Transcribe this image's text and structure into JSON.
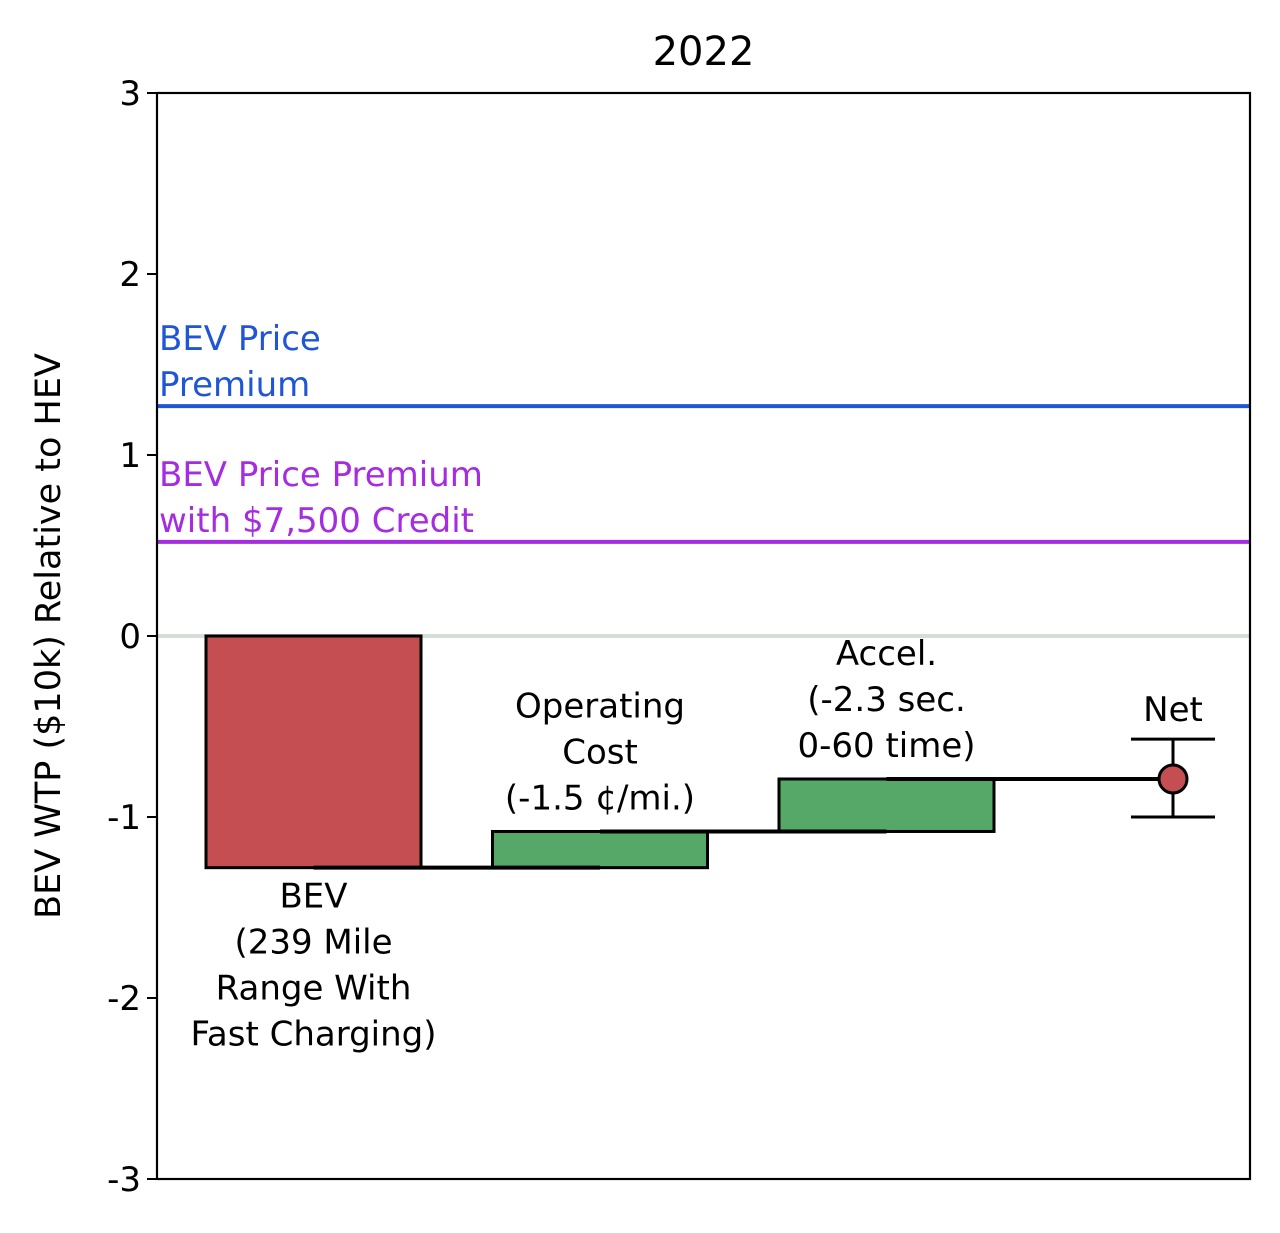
{
  "chart_data": {
    "type": "bar",
    "subtype": "waterfall",
    "title": "2022",
    "ylabel": "BEV WTP ($10k) Relative to HEV",
    "xlabel": "",
    "ylim": [
      -3,
      3
    ],
    "yticks": [
      3,
      2,
      1,
      0,
      -1,
      -2,
      -3
    ],
    "ytick_labels": [
      "3",
      "2",
      "1",
      "0",
      "-1",
      "-2",
      "-3"
    ],
    "grid": false,
    "reference_lines": [
      {
        "label_lines": [
          "BEV Price",
          "Premium"
        ],
        "value": 1.27,
        "color": "#1f55d6"
      },
      {
        "label_lines": [
          "BEV Price Premium",
          "with $7,500 Credit"
        ],
        "value": 0.52,
        "color": "#a52ce0"
      }
    ],
    "zero_line_color": "#d6ddd7",
    "bars": [
      {
        "label_lines": [
          "BEV",
          "(239 Mile",
          "Range With",
          "Fast Charging)"
        ],
        "label_position": "below",
        "start": 0,
        "end": -1.28,
        "color": "#c44e52"
      },
      {
        "label_lines": [
          "Operating",
          "Cost",
          "(-1.5 ¢/mi.)"
        ],
        "label_position": "above",
        "start": -1.28,
        "end": -1.08,
        "color": "#55a868"
      },
      {
        "label_lines": [
          "Accel.",
          "(-2.3 sec.",
          "0-60 time)"
        ],
        "label_position": "above",
        "start": -1.08,
        "end": -0.79,
        "color": "#55a868"
      }
    ],
    "net": {
      "label": "Net",
      "value": -0.79,
      "error_low": -1.0,
      "error_high": -0.57,
      "color": "#c44e52"
    }
  }
}
